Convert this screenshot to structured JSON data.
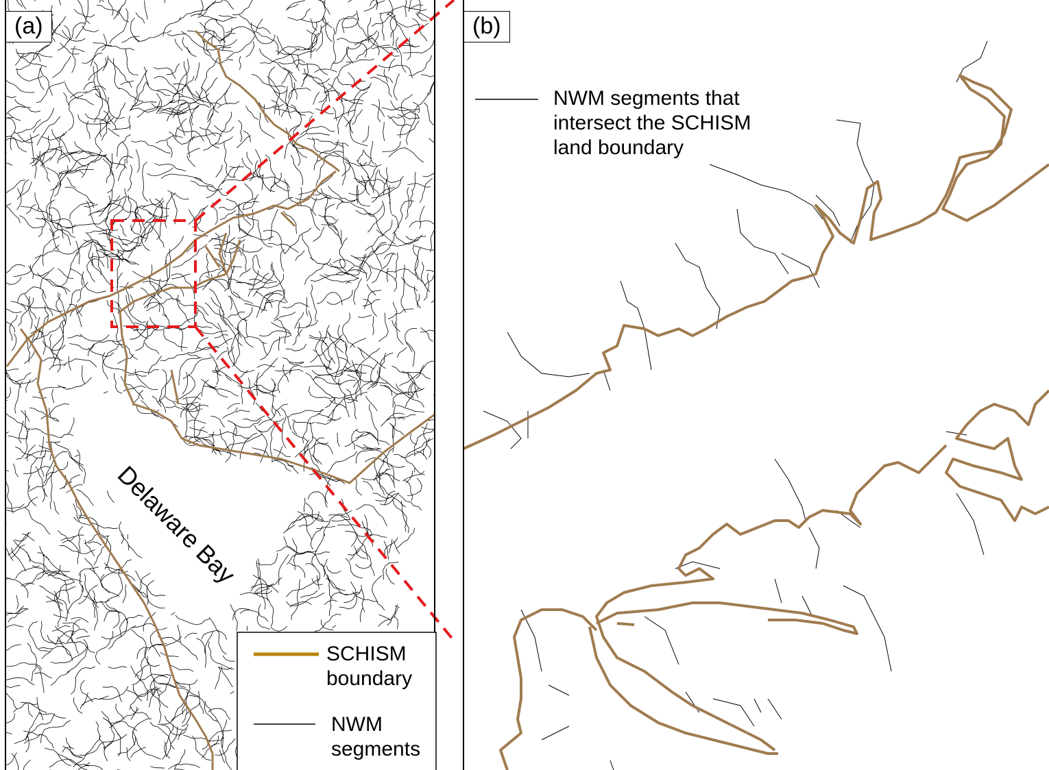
{
  "panel_a": {
    "label": "(a)",
    "water_label": "Delaware Bay",
    "legend": [
      {
        "label": "SCHISM boundary"
      },
      {
        "label": "NWM segments"
      }
    ]
  },
  "panel_b": {
    "label": "(b)",
    "legend_label": "NWM segments that intersect the SCHISM land boundary"
  }
}
